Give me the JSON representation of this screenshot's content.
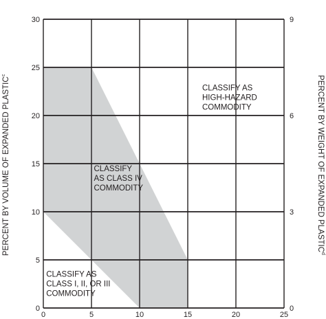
{
  "chart_data": {
    "type": "area",
    "x_ticks": [
      0,
      5,
      10,
      15,
      20,
      25
    ],
    "y_ticks_left": [
      0,
      5,
      10,
      15,
      20,
      25,
      30
    ],
    "y_ticks_right": [
      0,
      3,
      6,
      9
    ],
    "xlim": [
      0,
      25
    ],
    "ylim": [
      0,
      30
    ],
    "y_right_lim": [
      0,
      9
    ],
    "ylabel_left": "PERCENT BY VOLUME OF EXPANDED PLASTIC",
    "ylabel_left_sup": "c",
    "ylabel_right": "PERCENT BY WEIGHT OF EXPANDED PLASTIC",
    "ylabel_right_sup": "d",
    "grid": true,
    "shaded_region": {
      "fill_color": "#d1d3d4",
      "points": [
        [
          0,
          10
        ],
        [
          10,
          0
        ],
        [
          15,
          0
        ],
        [
          15,
          5
        ],
        [
          5,
          25
        ],
        [
          0,
          25
        ]
      ]
    },
    "regions": [
      {
        "name": "high-hazard",
        "lines": [
          "CLASSIFY AS",
          "HIGH-HAZARD",
          "COMMODITY"
        ],
        "x": 16.5,
        "y": 22.6
      },
      {
        "name": "class-iv",
        "lines": [
          "CLASSIFY",
          "AS CLASS IV",
          "COMMODITY"
        ],
        "x": 5.25,
        "y": 14.2
      },
      {
        "name": "class-i-iii",
        "lines": [
          "CLASSIFY AS",
          "CLASS I, II, OR III",
          "COMMODITY"
        ],
        "x": 0.3,
        "y": 3.25
      }
    ]
  }
}
